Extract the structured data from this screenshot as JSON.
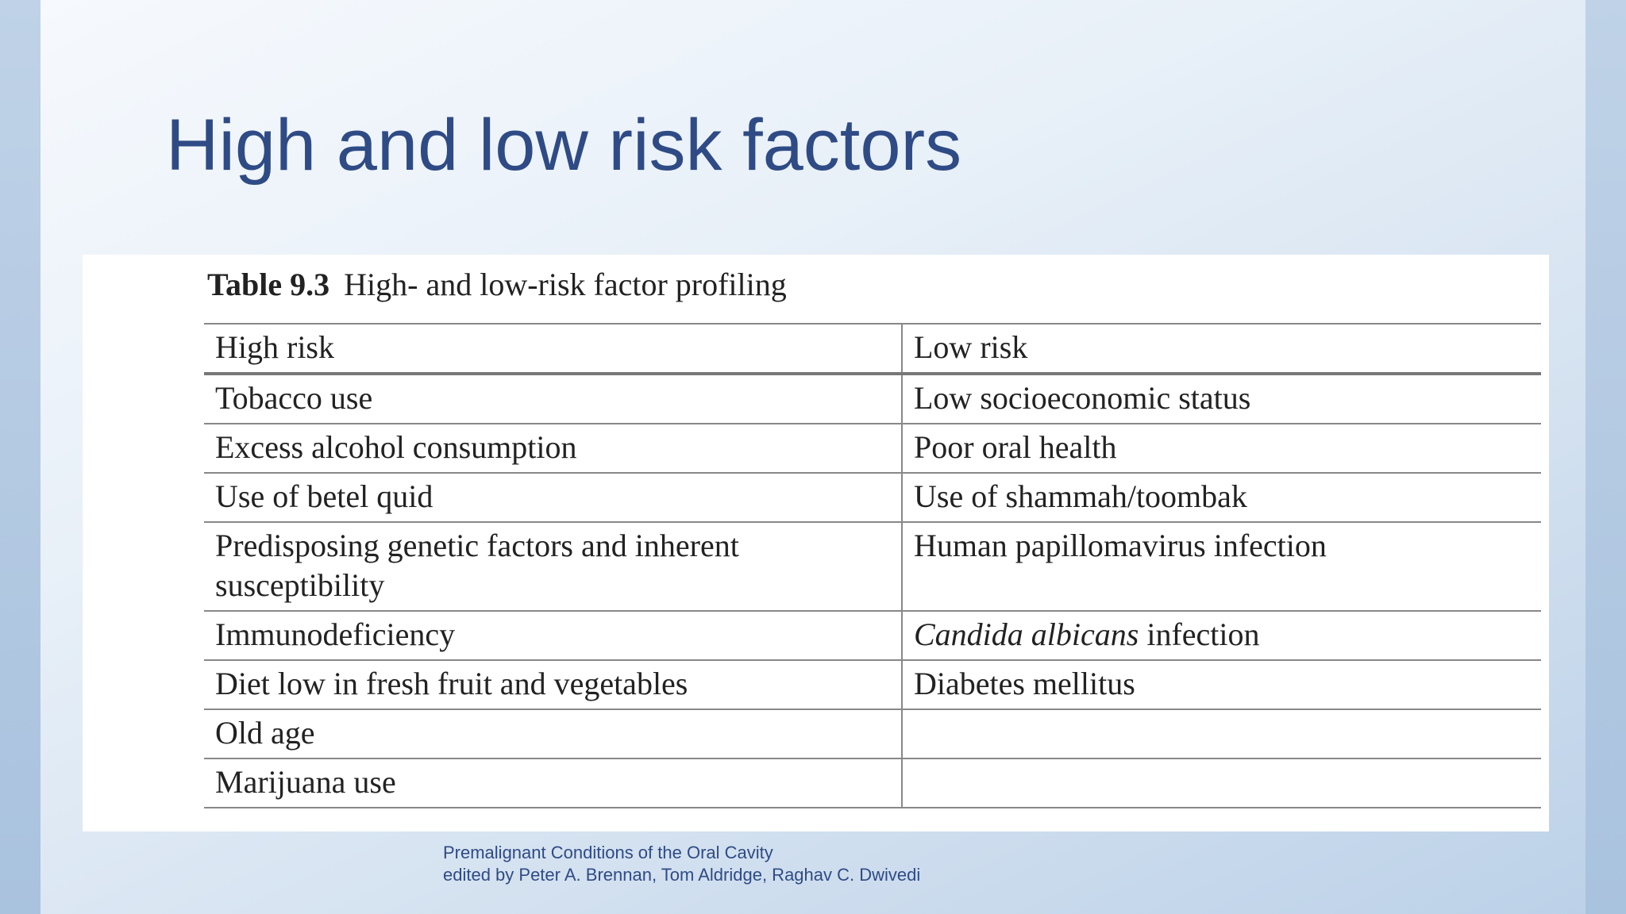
{
  "slide": {
    "title": "High and low risk factors"
  },
  "table": {
    "caption_number": "Table 9.3",
    "caption_text": "High- and low-risk factor profiling",
    "headers": [
      "High risk",
      "Low risk"
    ],
    "rows": [
      {
        "high": "Tobacco use",
        "low": "Low socioeconomic status"
      },
      {
        "high": "Excess alcohol consumption",
        "low": "Poor oral health"
      },
      {
        "high": "Use of betel quid",
        "low": "Use of shammah/toombak"
      },
      {
        "high_line1": "Predisposing genetic factors and inherent",
        "high_line2": "susceptibility",
        "low": "Human papillomavirus infection"
      },
      {
        "high": "Immunodeficiency",
        "low_italic": "Candida albicans",
        "low_rest": " infection"
      },
      {
        "high": "Diet low in fresh fruit and vegetables",
        "low": "Diabetes mellitus"
      },
      {
        "high": "Old age",
        "low": ""
      },
      {
        "high": "Marijuana use",
        "low": ""
      }
    ]
  },
  "source": {
    "line1": "Premalignant Conditions of the Oral Cavity",
    "line2": "edited by Peter A. Brennan, Tom Aldridge, Raghav C. Dwivedi"
  }
}
